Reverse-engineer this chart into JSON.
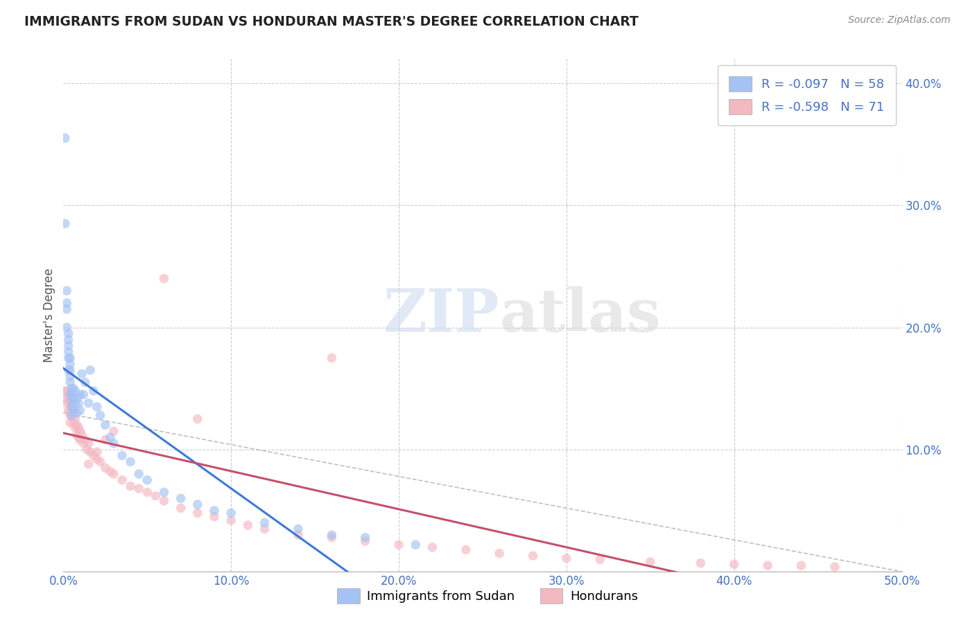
{
  "title": "IMMIGRANTS FROM SUDAN VS HONDURAN MASTER'S DEGREE CORRELATION CHART",
  "source_text": "Source: ZipAtlas.com",
  "ylabel": "Master's Degree",
  "xlim": [
    0.0,
    0.5
  ],
  "ylim": [
    0.0,
    0.42
  ],
  "color_blue": "#a4c2f4",
  "color_pink": "#f4b8c1",
  "color_line_blue": "#3c78d8",
  "color_line_pink": "#c4506a",
  "color_dashed": "#c0c0c0",
  "background_color": "#ffffff",
  "grid_color": "#cccccc",
  "legend_label1": "Immigrants from Sudan",
  "legend_label2": "Hondurans",
  "watermark_zip": "ZIP",
  "watermark_atlas": "atlas",
  "sudan_x": [
    0.001,
    0.001,
    0.002,
    0.002,
    0.002,
    0.002,
    0.003,
    0.003,
    0.003,
    0.003,
    0.003,
    0.003,
    0.004,
    0.004,
    0.004,
    0.004,
    0.004,
    0.004,
    0.005,
    0.005,
    0.005,
    0.005,
    0.005,
    0.006,
    0.006,
    0.006,
    0.007,
    0.007,
    0.008,
    0.008,
    0.009,
    0.01,
    0.01,
    0.011,
    0.012,
    0.013,
    0.015,
    0.016,
    0.018,
    0.02,
    0.022,
    0.025,
    0.028,
    0.03,
    0.035,
    0.04,
    0.045,
    0.05,
    0.06,
    0.07,
    0.08,
    0.09,
    0.1,
    0.12,
    0.14,
    0.16,
    0.18,
    0.21
  ],
  "sudan_y": [
    0.355,
    0.285,
    0.23,
    0.22,
    0.215,
    0.2,
    0.195,
    0.19,
    0.185,
    0.18,
    0.175,
    0.165,
    0.175,
    0.17,
    0.165,
    0.16,
    0.155,
    0.145,
    0.15,
    0.145,
    0.14,
    0.135,
    0.128,
    0.15,
    0.142,
    0.132,
    0.148,
    0.138,
    0.142,
    0.13,
    0.138,
    0.145,
    0.132,
    0.162,
    0.145,
    0.155,
    0.138,
    0.165,
    0.148,
    0.135,
    0.128,
    0.12,
    0.11,
    0.105,
    0.095,
    0.09,
    0.08,
    0.075,
    0.065,
    0.06,
    0.055,
    0.05,
    0.048,
    0.04,
    0.035,
    0.03,
    0.028,
    0.022
  ],
  "honduran_x": [
    0.001,
    0.002,
    0.002,
    0.002,
    0.003,
    0.003,
    0.003,
    0.004,
    0.004,
    0.004,
    0.004,
    0.005,
    0.005,
    0.005,
    0.006,
    0.006,
    0.007,
    0.007,
    0.008,
    0.008,
    0.009,
    0.009,
    0.01,
    0.01,
    0.011,
    0.012,
    0.013,
    0.014,
    0.015,
    0.016,
    0.018,
    0.02,
    0.022,
    0.025,
    0.028,
    0.03,
    0.035,
    0.04,
    0.045,
    0.05,
    0.055,
    0.06,
    0.07,
    0.08,
    0.09,
    0.1,
    0.11,
    0.12,
    0.14,
    0.16,
    0.18,
    0.2,
    0.22,
    0.24,
    0.26,
    0.28,
    0.3,
    0.32,
    0.35,
    0.38,
    0.4,
    0.42,
    0.44,
    0.46,
    0.16,
    0.06,
    0.08,
    0.03,
    0.025,
    0.02,
    0.015
  ],
  "honduran_y": [
    0.148,
    0.148,
    0.142,
    0.138,
    0.145,
    0.14,
    0.132,
    0.138,
    0.132,
    0.128,
    0.122,
    0.14,
    0.135,
    0.128,
    0.13,
    0.122,
    0.125,
    0.118,
    0.12,
    0.112,
    0.118,
    0.11,
    0.115,
    0.108,
    0.112,
    0.105,
    0.108,
    0.1,
    0.105,
    0.098,
    0.095,
    0.092,
    0.09,
    0.085,
    0.082,
    0.08,
    0.075,
    0.07,
    0.068,
    0.065,
    0.062,
    0.058,
    0.052,
    0.048,
    0.045,
    0.042,
    0.038,
    0.035,
    0.03,
    0.028,
    0.025,
    0.022,
    0.02,
    0.018,
    0.015,
    0.013,
    0.011,
    0.01,
    0.008,
    0.007,
    0.006,
    0.005,
    0.005,
    0.004,
    0.175,
    0.24,
    0.125,
    0.115,
    0.108,
    0.098,
    0.088
  ]
}
